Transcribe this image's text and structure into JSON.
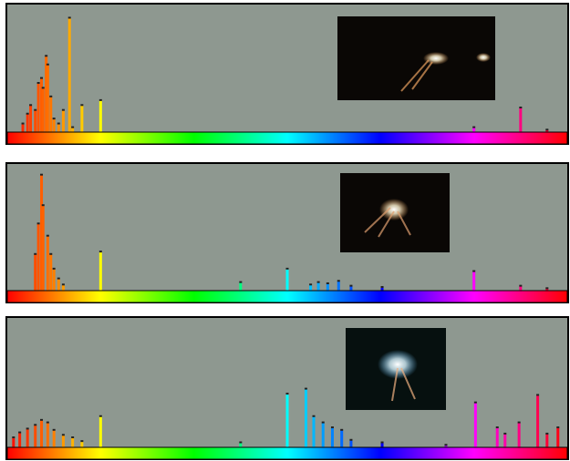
{
  "chart_data": [
    {
      "type": "bar",
      "xlim": [
        0,
        360
      ],
      "ylim": [
        0,
        100
      ],
      "x": [
        10,
        13,
        15,
        18,
        20,
        22,
        23,
        25,
        26,
        28,
        30,
        33,
        36,
        40,
        42,
        48,
        60,
        300,
        330,
        347
      ],
      "values": [
        7,
        15,
        22,
        18,
        40,
        44,
        36,
        62,
        55,
        29,
        11,
        7,
        18,
        93,
        4,
        22,
        26,
        4,
        20,
        2
      ]
    },
    {
      "type": "bar",
      "xlim": [
        0,
        360
      ],
      "ylim": [
        0,
        100
      ],
      "x": [
        18,
        20,
        22,
        23,
        26,
        28,
        30,
        33,
        36,
        60,
        150,
        180,
        195,
        200,
        206,
        213,
        221,
        241,
        300,
        330,
        347
      ],
      "values": [
        30,
        55,
        95,
        70,
        45,
        30,
        18,
        10,
        5,
        32,
        7,
        18,
        5,
        7,
        6,
        8,
        4,
        3,
        16,
        4,
        2
      ]
    },
    {
      "type": "bar",
      "xlim": [
        0,
        360
      ],
      "ylim": [
        0,
        100
      ],
      "x": [
        4,
        8,
        13,
        18,
        22,
        26,
        30,
        36,
        42,
        48,
        60,
        150,
        180,
        192,
        197,
        203,
        209,
        215,
        221,
        241,
        282,
        301,
        315,
        320,
        329,
        341,
        347,
        354
      ],
      "values": [
        8,
        12,
        15,
        18,
        22,
        20,
        14,
        10,
        8,
        5,
        25,
        4,
        43,
        47,
        25,
        20,
        16,
        14,
        6,
        4,
        2,
        36,
        16,
        11,
        20,
        42,
        11,
        16
      ]
    }
  ]
}
